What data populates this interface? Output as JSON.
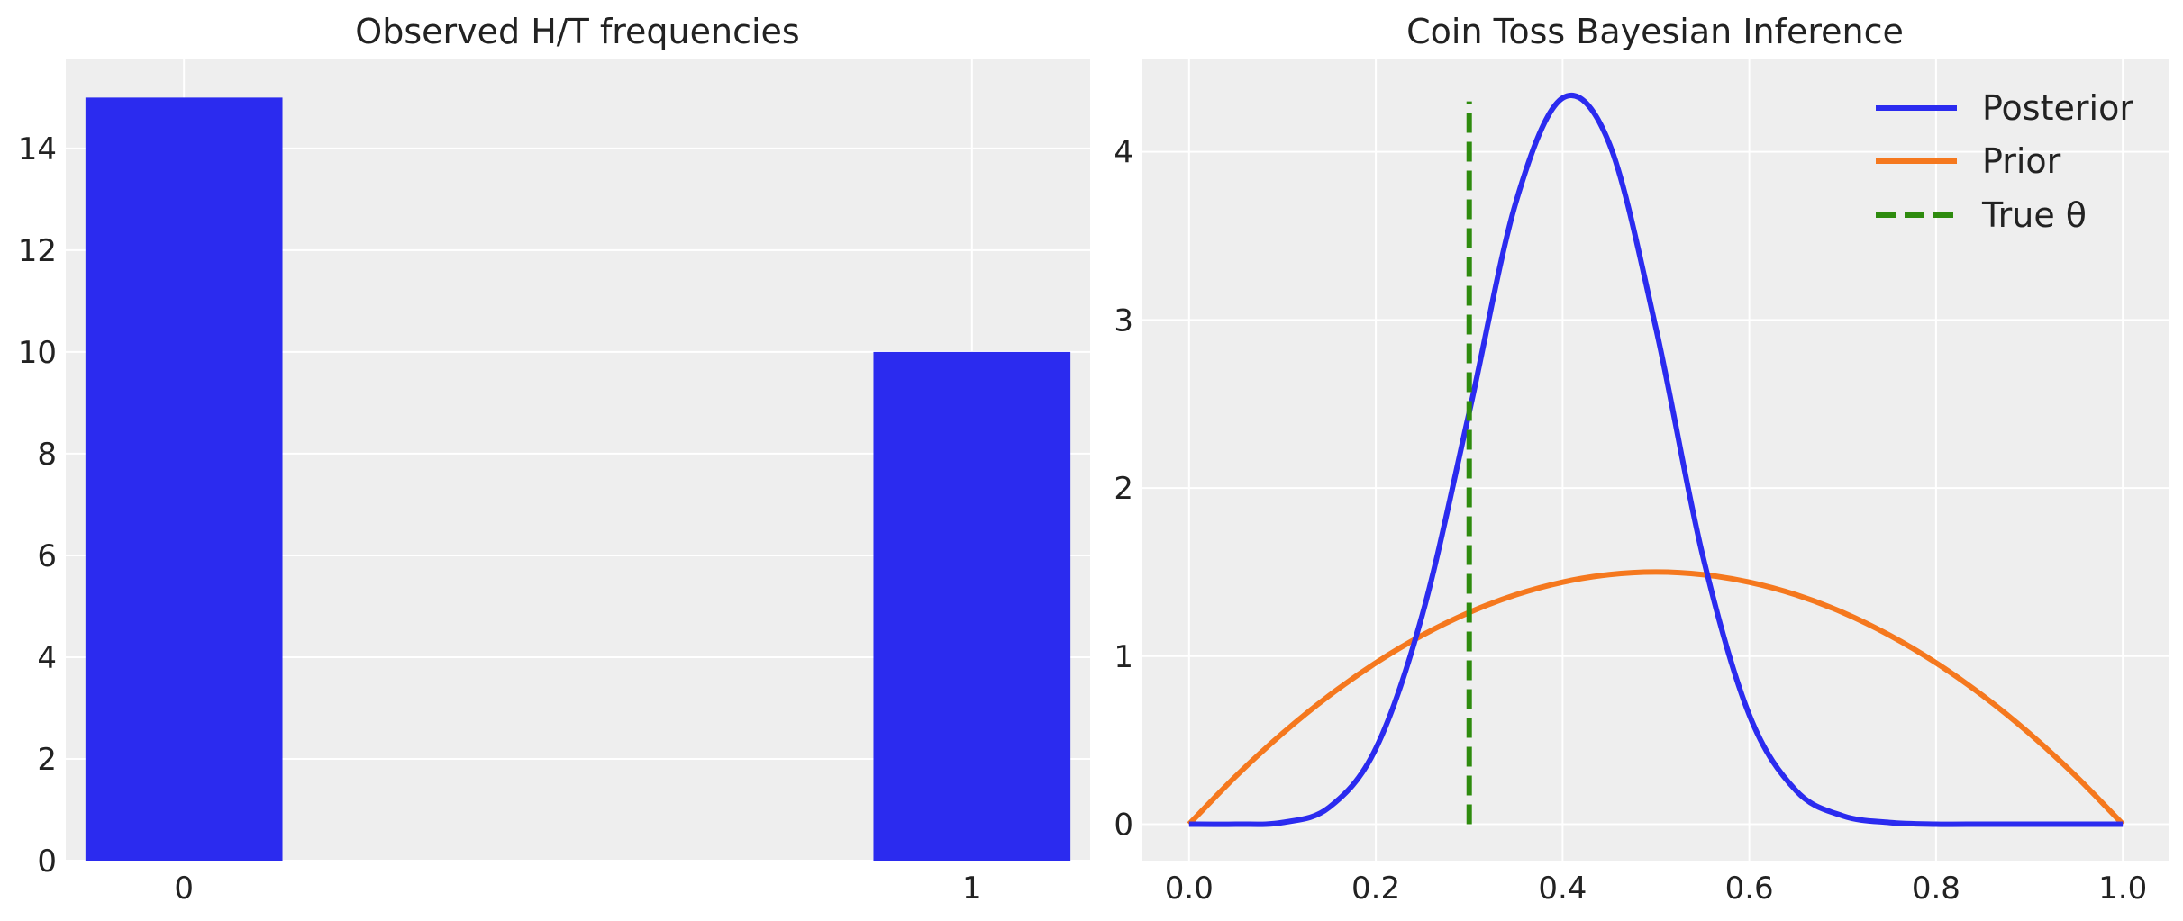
{
  "chart_data": [
    {
      "type": "bar",
      "title": "Observed H/T frequencies",
      "xlabel": "",
      "ylabel": "",
      "categories": [
        "0",
        "1"
      ],
      "x": [
        0,
        1
      ],
      "values": [
        15,
        10
      ],
      "xlim": [
        -0.15,
        1.15
      ],
      "ylim": [
        0,
        15.75
      ],
      "yticks": [
        0,
        2,
        4,
        6,
        8,
        10,
        12,
        14
      ],
      "bar_color": "#2b2bef",
      "grid": true,
      "background": "#eeeeee"
    },
    {
      "type": "line",
      "title": "Coin Toss Bayesian Inference",
      "xlabel": "",
      "ylabel": "",
      "xlim": [
        -0.05,
        1.05
      ],
      "ylim": [
        -0.217,
        4.55
      ],
      "xticks": [
        "0.0",
        "0.2",
        "0.4",
        "0.6",
        "0.8",
        "1.0"
      ],
      "yticks": [
        "0",
        "1",
        "2",
        "3",
        "4"
      ],
      "grid": true,
      "background": "#eeeeee",
      "legend_position": "top-right",
      "series": [
        {
          "name": "Posterior",
          "color": "#2b2bef",
          "x": [
            0.0,
            0.05,
            0.1,
            0.15,
            0.2,
            0.25,
            0.3,
            0.35,
            0.4,
            0.45,
            0.5,
            0.55,
            0.6,
            0.65,
            0.7,
            0.75,
            0.8,
            0.85,
            0.9,
            0.95,
            1.0
          ],
          "y": [
            0.0,
            0.0,
            0.01,
            0.1,
            0.45,
            1.25,
            2.45,
            3.7,
            4.32,
            4.05,
            2.95,
            1.6,
            0.65,
            0.2,
            0.05,
            0.01,
            0.0,
            0.0,
            0.0,
            0.0,
            0.0
          ]
        },
        {
          "name": "Prior",
          "color": "#f5781e",
          "x": [
            0.0,
            0.05,
            0.1,
            0.15,
            0.2,
            0.25,
            0.3,
            0.35,
            0.4,
            0.45,
            0.5,
            0.55,
            0.6,
            0.65,
            0.7,
            0.75,
            0.8,
            0.85,
            0.9,
            0.95,
            1.0
          ],
          "y": [
            0.0,
            0.285,
            0.54,
            0.765,
            0.96,
            1.125,
            1.26,
            1.365,
            1.44,
            1.485,
            1.5,
            1.485,
            1.44,
            1.365,
            1.26,
            1.125,
            0.96,
            0.765,
            0.54,
            0.285,
            0.0
          ]
        },
        {
          "name": "True θ",
          "color": "#2e8b0e",
          "style": "dashed",
          "x": [
            0.3,
            0.3
          ],
          "y": [
            0.0,
            4.3
          ]
        }
      ]
    }
  ]
}
